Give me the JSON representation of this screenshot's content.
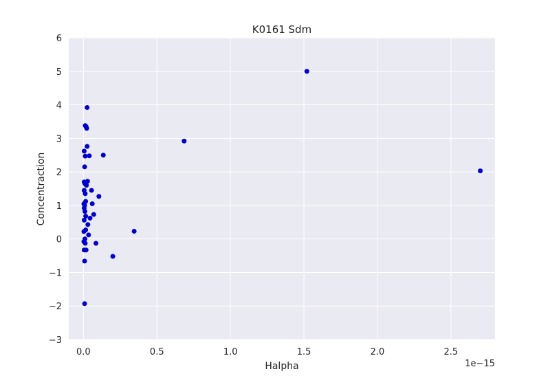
{
  "chart_data": {
    "type": "scatter",
    "title": "K0161 Sdm",
    "xlabel": "Halpha",
    "ylabel": "Concentraction",
    "x_offset_label": "1e−15",
    "xlim": [
      -0.1,
      2.8
    ],
    "ylim": [
      -3,
      6
    ],
    "x_ticks": [
      0.0,
      0.5,
      1.0,
      1.5,
      2.0,
      2.5
    ],
    "x_tick_labels": [
      "0.0",
      "0.5",
      "1.0",
      "1.5",
      "2.0",
      "2.5"
    ],
    "y_ticks": [
      -3,
      -2,
      -1,
      0,
      1,
      2,
      3,
      4,
      5,
      6
    ],
    "y_tick_labels": [
      "−3",
      "−2",
      "−1",
      "0",
      "1",
      "2",
      "3",
      "4",
      "5",
      "6"
    ],
    "grid": true,
    "colors": {
      "background": "#eaeaf2",
      "grid": "#ffffff",
      "marker": "#0000cc"
    },
    "points": [
      {
        "x": 0.025,
        "y": 3.92
      },
      {
        "x": 0.012,
        "y": 3.38
      },
      {
        "x": 0.018,
        "y": 3.35
      },
      {
        "x": 0.022,
        "y": 3.3
      },
      {
        "x": 0.025,
        "y": 2.76
      },
      {
        "x": 0.005,
        "y": 2.62
      },
      {
        "x": 0.012,
        "y": 2.47
      },
      {
        "x": 0.04,
        "y": 2.48
      },
      {
        "x": 0.135,
        "y": 2.5
      },
      {
        "x": 0.008,
        "y": 2.15
      },
      {
        "x": 0.005,
        "y": 1.7
      },
      {
        "x": 0.028,
        "y": 1.72
      },
      {
        "x": 0.01,
        "y": 1.65
      },
      {
        "x": 0.02,
        "y": 1.6
      },
      {
        "x": 0.005,
        "y": 1.45
      },
      {
        "x": 0.055,
        "y": 1.45
      },
      {
        "x": 0.012,
        "y": 1.35
      },
      {
        "x": 0.105,
        "y": 1.27
      },
      {
        "x": 0.015,
        "y": 1.12
      },
      {
        "x": 0.003,
        "y": 1.05
      },
      {
        "x": 0.008,
        "y": 1.0
      },
      {
        "x": 0.06,
        "y": 1.05
      },
      {
        "x": 0.005,
        "y": 0.92
      },
      {
        "x": 0.01,
        "y": 0.82
      },
      {
        "x": 0.015,
        "y": 0.68
      },
      {
        "x": 0.07,
        "y": 0.73
      },
      {
        "x": 0.045,
        "y": 0.62
      },
      {
        "x": 0.005,
        "y": 0.56
      },
      {
        "x": 0.03,
        "y": 0.43
      },
      {
        "x": 0.015,
        "y": 0.27
      },
      {
        "x": 0.003,
        "y": 0.22
      },
      {
        "x": 0.035,
        "y": 0.12
      },
      {
        "x": 0.345,
        "y": 0.23
      },
      {
        "x": 0.01,
        "y": 0.0
      },
      {
        "x": 0.003,
        "y": -0.08
      },
      {
        "x": 0.012,
        "y": -0.13
      },
      {
        "x": 0.085,
        "y": -0.13
      },
      {
        "x": 0.005,
        "y": -0.33
      },
      {
        "x": 0.018,
        "y": -0.33
      },
      {
        "x": 0.2,
        "y": -0.52
      },
      {
        "x": 0.008,
        "y": -0.66
      },
      {
        "x": 0.008,
        "y": -1.93
      },
      {
        "x": 0.685,
        "y": 2.92
      },
      {
        "x": 1.52,
        "y": 5.0
      },
      {
        "x": 2.7,
        "y": 2.03
      }
    ]
  }
}
